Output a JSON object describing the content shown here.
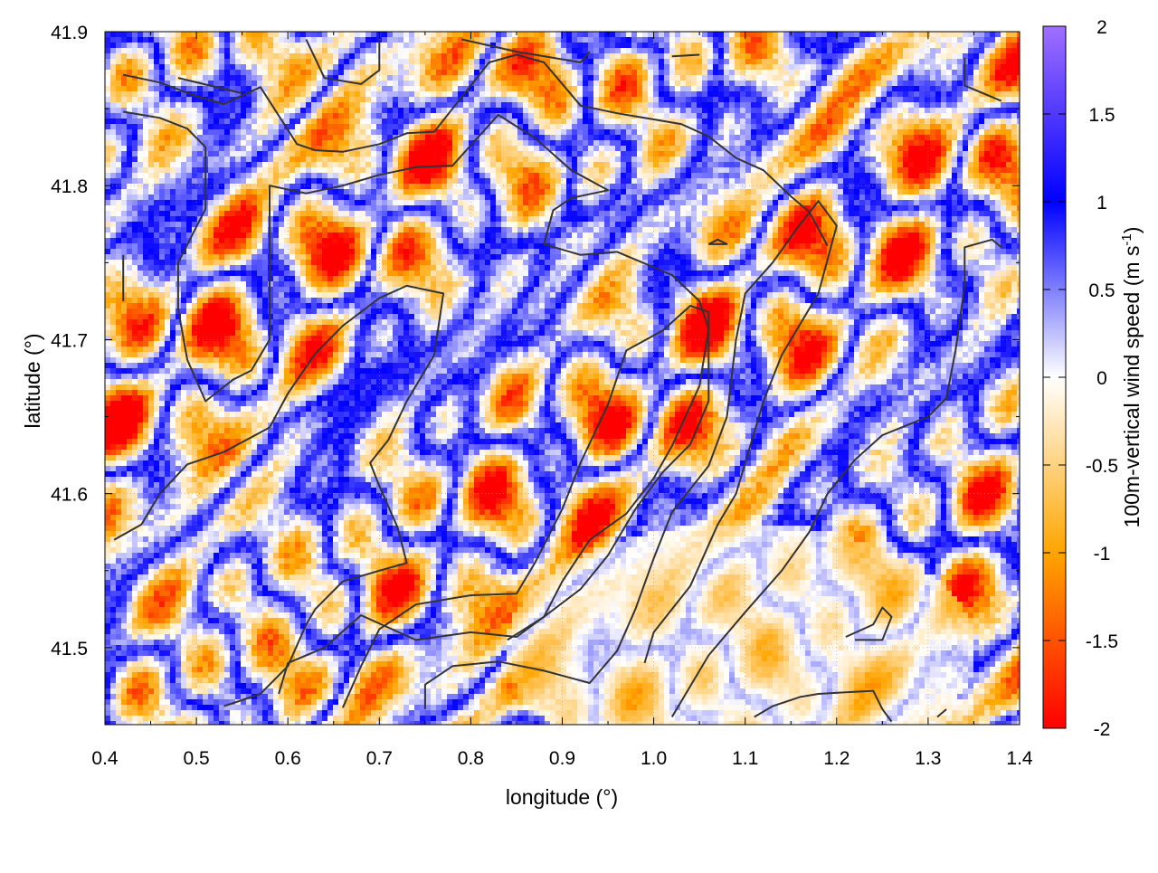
{
  "chart_data": {
    "type": "heatmap",
    "title": "",
    "xlabel": "longitude (°)",
    "ylabel": "latitude (°)",
    "xlim": [
      0.4,
      1.4
    ],
    "ylim": [
      41.45,
      41.9
    ],
    "x_ticks": [
      0.4,
      0.5,
      0.6,
      0.7,
      0.8,
      0.9,
      1.0,
      1.1,
      1.2,
      1.3,
      1.4
    ],
    "x_tick_labels": [
      "0.4",
      "0.5",
      "0.6",
      "0.7",
      "0.8",
      "0.9",
      "1.0",
      "1.1",
      "1.2",
      "1.3",
      "1.4"
    ],
    "y_ticks": [
      41.5,
      41.6,
      41.7,
      41.8,
      41.9
    ],
    "y_tick_labels": [
      "41.5",
      "41.6",
      "41.7",
      "41.8",
      "41.9"
    ],
    "grid": true,
    "colorbar": {
      "label_main": "100m-vertical wind speed (m s",
      "label_sup": "-1",
      "label_close": ")",
      "range": [
        -2,
        2
      ],
      "ticks": [
        -2,
        -1.5,
        -1,
        -0.5,
        0,
        0.5,
        1,
        1.5,
        2
      ],
      "tick_labels": [
        "-2",
        "-1.5",
        "-1",
        "-0.5",
        "0",
        "0.5",
        "1",
        "1.5",
        "2"
      ],
      "colors": {
        "min": "#ff0000",
        "low": "#ffa500",
        "mid": "#ffffff",
        "high": "#0000ff",
        "max": "#a070ff"
      }
    },
    "contour_color": "#333333",
    "contours": [
      [
        [
          0.42,
          41.872
        ],
        [
          0.46,
          41.867
        ],
        [
          0.5,
          41.858
        ],
        [
          0.53,
          41.853
        ],
        [
          0.57,
          41.864
        ],
        [
          0.61,
          41.827
        ],
        [
          0.63,
          41.823
        ],
        [
          0.66,
          41.822
        ],
        [
          0.7,
          41.827
        ],
        [
          0.73,
          41.834
        ],
        [
          0.76,
          41.835
        ],
        [
          0.78,
          41.85
        ],
        [
          0.8,
          41.865
        ],
        [
          0.82,
          41.88
        ],
        [
          0.85,
          41.885
        ],
        [
          0.88,
          41.88
        ],
        [
          0.92,
          41.852
        ],
        [
          0.96,
          41.847
        ],
        [
          1.0,
          41.843
        ],
        [
          1.03,
          41.84
        ],
        [
          1.06,
          41.832
        ],
        [
          1.09,
          41.818
        ],
        [
          1.12,
          41.81
        ],
        [
          1.15,
          41.793
        ],
        [
          1.17,
          41.783
        ],
        [
          1.19,
          41.761
        ]
      ],
      [
        [
          0.42,
          41.848
        ],
        [
          0.46,
          41.844
        ],
        [
          0.49,
          41.837
        ],
        [
          0.51,
          41.825
        ],
        [
          0.51,
          41.785
        ],
        [
          0.48,
          41.75
        ],
        [
          0.48,
          41.72
        ],
        [
          0.49,
          41.687
        ],
        [
          0.51,
          41.66
        ],
        [
          0.54,
          41.674
        ],
        [
          0.56,
          41.68
        ],
        [
          0.58,
          41.7
        ],
        [
          0.58,
          41.75
        ],
        [
          0.58,
          41.8
        ],
        [
          0.62,
          41.795
        ],
        [
          0.66,
          41.8
        ],
        [
          0.7,
          41.807
        ],
        [
          0.74,
          41.812
        ],
        [
          0.78,
          41.813
        ],
        [
          0.83,
          41.846
        ],
        [
          0.87,
          41.831
        ],
        [
          0.91,
          41.81
        ],
        [
          0.95,
          41.797
        ],
        [
          0.91,
          41.792
        ],
        [
          0.89,
          41.784
        ],
        [
          0.88,
          41.762
        ],
        [
          0.92,
          41.755
        ],
        [
          0.96,
          41.757
        ],
        [
          1.02,
          41.742
        ],
        [
          1.05,
          41.725
        ],
        [
          1.06,
          41.707
        ],
        [
          1.05,
          41.67
        ],
        [
          1.02,
          41.631
        ],
        [
          1.0,
          41.61
        ],
        [
          0.97,
          41.587
        ],
        [
          0.93,
          41.57
        ],
        [
          0.9,
          41.543
        ],
        [
          0.88,
          41.52
        ],
        [
          0.85,
          41.507
        ],
        [
          0.8,
          41.51
        ],
        [
          0.74,
          41.505
        ],
        [
          0.68,
          41.521
        ],
        [
          0.64,
          41.5
        ],
        [
          0.6,
          41.49
        ],
        [
          0.59,
          41.47
        ]
      ],
      [
        [
          0.48,
          41.87
        ],
        [
          0.55,
          41.86
        ]
      ],
      [
        [
          0.53,
          41.462
        ],
        [
          0.57,
          41.47
        ],
        [
          0.6,
          41.488
        ],
        [
          0.62,
          41.515
        ],
        [
          0.63,
          41.525
        ],
        [
          0.66,
          41.543
        ],
        [
          0.7,
          41.55
        ],
        [
          0.73,
          41.555
        ],
        [
          0.72,
          41.578
        ],
        [
          0.7,
          41.605
        ],
        [
          0.69,
          41.62
        ],
        [
          0.71,
          41.635
        ],
        [
          0.73,
          41.66
        ],
        [
          0.76,
          41.69
        ],
        [
          0.77,
          41.73
        ],
        [
          0.73,
          41.735
        ],
        [
          0.7,
          41.727
        ],
        [
          0.66,
          41.709
        ],
        [
          0.63,
          41.691
        ],
        [
          0.6,
          41.665
        ],
        [
          0.58,
          41.643
        ],
        [
          0.53,
          41.627
        ],
        [
          0.49,
          41.619
        ],
        [
          0.46,
          41.6
        ],
        [
          0.44,
          41.58
        ],
        [
          0.41,
          41.57
        ]
      ],
      [
        [
          0.66,
          41.461
        ],
        [
          0.68,
          41.488
        ],
        [
          0.7,
          41.512
        ],
        [
          0.74,
          41.528
        ],
        [
          0.8,
          41.534
        ],
        [
          0.85,
          41.535
        ],
        [
          0.87,
          41.555
        ],
        [
          0.9,
          41.59
        ],
        [
          0.92,
          41.62
        ],
        [
          0.95,
          41.658
        ],
        [
          0.97,
          41.693
        ],
        [
          1.01,
          41.706
        ],
        [
          1.04,
          41.722
        ],
        [
          1.06,
          41.718
        ],
        [
          1.06,
          41.69
        ],
        [
          1.06,
          41.66
        ],
        [
          1.04,
          41.632
        ],
        [
          1.01,
          41.614
        ],
        [
          0.98,
          41.59
        ],
        [
          0.95,
          41.56
        ],
        [
          0.92,
          41.538
        ],
        [
          0.88,
          41.52
        ],
        [
          0.84,
          41.505
        ]
      ],
      [
        [
          0.75,
          41.46
        ],
        [
          0.75,
          41.476
        ],
        [
          0.78,
          41.488
        ],
        [
          0.83,
          41.491
        ],
        [
          0.88,
          41.485
        ],
        [
          0.93,
          41.477
        ],
        [
          0.96,
          41.498
        ],
        [
          0.98,
          41.525
        ],
        [
          1.0,
          41.558
        ],
        [
          1.02,
          41.588
        ],
        [
          1.06,
          41.618
        ],
        [
          1.08,
          41.65
        ],
        [
          1.09,
          41.7
        ],
        [
          1.1,
          41.73
        ],
        [
          1.13,
          41.75
        ],
        [
          1.16,
          41.775
        ],
        [
          1.18,
          41.79
        ],
        [
          1.2,
          41.774
        ],
        [
          1.18,
          41.73
        ],
        [
          1.14,
          41.69
        ],
        [
          1.12,
          41.66
        ],
        [
          1.1,
          41.62
        ],
        [
          1.09,
          41.6
        ],
        [
          1.07,
          41.58
        ],
        [
          1.04,
          41.54
        ],
        [
          1.0,
          41.51
        ],
        [
          0.99,
          41.49
        ]
      ],
      [
        [
          1.02,
          41.455
        ],
        [
          1.06,
          41.495
        ],
        [
          1.1,
          41.523
        ],
        [
          1.14,
          41.55
        ],
        [
          1.17,
          41.575
        ],
        [
          1.19,
          41.6
        ],
        [
          1.22,
          41.622
        ],
        [
          1.25,
          41.638
        ],
        [
          1.3,
          41.65
        ],
        [
          1.32,
          41.662
        ],
        [
          1.33,
          41.693
        ],
        [
          1.34,
          41.735
        ],
        [
          1.34,
          41.76
        ],
        [
          1.37,
          41.765
        ],
        [
          1.38,
          41.76
        ]
      ],
      [
        [
          1.11,
          41.455
        ],
        [
          1.13,
          41.462
        ],
        [
          1.16,
          41.468
        ],
        [
          1.18,
          41.47
        ],
        [
          1.21,
          41.471
        ],
        [
          1.24,
          41.472
        ],
        [
          1.25,
          41.46
        ],
        [
          1.26,
          41.452
        ]
      ],
      [
        [
          1.21,
          41.507
        ],
        [
          1.24,
          41.515
        ],
        [
          1.25,
          41.526
        ],
        [
          1.26,
          41.52
        ],
        [
          1.25,
          41.505
        ],
        [
          1.22,
          41.505
        ]
      ],
      [
        [
          1.06,
          41.762
        ],
        [
          1.08,
          41.762
        ],
        [
          1.07,
          41.765
        ],
        [
          1.06,
          41.762
        ]
      ],
      [
        [
          0.62,
          41.895
        ],
        [
          0.64,
          41.87
        ],
        [
          0.68,
          41.866
        ],
        [
          0.7,
          41.875
        ],
        [
          0.7,
          41.895
        ]
      ],
      [
        [
          0.79,
          41.895
        ],
        [
          0.85,
          41.887
        ],
        [
          0.92,
          41.88
        ],
        [
          0.93,
          41.887
        ]
      ],
      [
        [
          1.02,
          41.884
        ],
        [
          1.05,
          41.885
        ]
      ],
      [
        [
          1.34,
          41.883
        ],
        [
          1.34,
          41.865
        ],
        [
          1.38,
          41.855
        ]
      ],
      [
        [
          0.42,
          41.725
        ],
        [
          0.42,
          41.755
        ]
      ],
      [
        [
          1.31,
          41.455
        ],
        [
          1.32,
          41.46
        ]
      ]
    ]
  }
}
